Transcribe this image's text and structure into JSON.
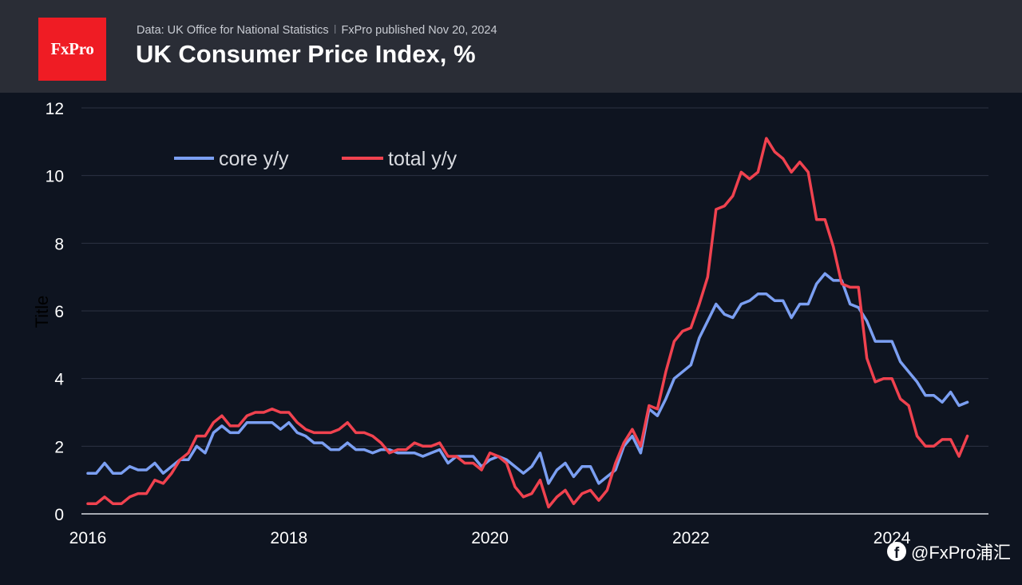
{
  "header": {
    "logo_text": "FxPro",
    "source": "Data: UK Office for National Statistics",
    "separator": "ǀ",
    "published": "FxPro published Nov 20, 2024",
    "title": "UK Consumer Price Index, %"
  },
  "watermark": {
    "icon": "facebook-icon",
    "text": "@FxPro浦汇"
  },
  "colors": {
    "background": "#0e1420",
    "header": "#2a2d36",
    "logo": "#ef1c24",
    "core": "#7b9ff2",
    "total": "#f0424f",
    "grid": "#2c3242"
  },
  "chart_data": {
    "type": "line",
    "title": "UK Consumer Price Index, %",
    "xlabel": "",
    "ylabel": "Title",
    "ylim": [
      0,
      12
    ],
    "xlim": [
      2016.0,
      2024.833
    ],
    "yticks": [
      "0",
      "2",
      "4",
      "6",
      "8",
      "10",
      "12"
    ],
    "xticks": [
      "2016",
      "2018",
      "2020",
      "2022",
      "2024"
    ],
    "grid": true,
    "legend_position": "top-left",
    "x_start": 2016.0,
    "x_step_months": 1,
    "series": [
      {
        "name": "core y/y",
        "color": "#7b9ff2",
        "values": [
          1.2,
          1.2,
          1.5,
          1.2,
          1.2,
          1.4,
          1.3,
          1.3,
          1.5,
          1.2,
          1.4,
          1.6,
          1.6,
          2.0,
          1.8,
          2.4,
          2.6,
          2.4,
          2.4,
          2.7,
          2.7,
          2.7,
          2.7,
          2.5,
          2.7,
          2.4,
          2.3,
          2.1,
          2.1,
          1.9,
          1.9,
          2.1,
          1.9,
          1.9,
          1.8,
          1.9,
          1.9,
          1.8,
          1.8,
          1.8,
          1.7,
          1.8,
          1.9,
          1.5,
          1.7,
          1.7,
          1.7,
          1.4,
          1.6,
          1.7,
          1.6,
          1.4,
          1.2,
          1.4,
          1.8,
          0.9,
          1.3,
          1.5,
          1.1,
          1.4,
          1.4,
          0.9,
          1.1,
          1.3,
          2.0,
          2.3,
          1.8,
          3.1,
          2.9,
          3.4,
          4.0,
          4.2,
          4.4,
          5.2,
          5.7,
          6.2,
          5.9,
          5.8,
          6.2,
          6.3,
          6.5,
          6.5,
          6.3,
          6.3,
          5.8,
          6.2,
          6.2,
          6.8,
          7.1,
          6.9,
          6.9,
          6.2,
          6.1,
          5.7,
          5.1,
          5.1,
          5.1,
          4.5,
          4.2,
          3.9,
          3.5,
          3.5,
          3.3,
          3.6,
          3.2,
          3.3
        ]
      },
      {
        "name": "total y/y",
        "color": "#f0424f",
        "values": [
          0.3,
          0.3,
          0.5,
          0.3,
          0.3,
          0.5,
          0.6,
          0.6,
          1.0,
          0.9,
          1.2,
          1.6,
          1.8,
          2.3,
          2.3,
          2.7,
          2.9,
          2.6,
          2.6,
          2.9,
          3.0,
          3.0,
          3.1,
          3.0,
          3.0,
          2.7,
          2.5,
          2.4,
          2.4,
          2.4,
          2.5,
          2.7,
          2.4,
          2.4,
          2.3,
          2.1,
          1.8,
          1.9,
          1.9,
          2.1,
          2.0,
          2.0,
          2.1,
          1.7,
          1.7,
          1.5,
          1.5,
          1.3,
          1.8,
          1.7,
          1.5,
          0.8,
          0.5,
          0.6,
          1.0,
          0.2,
          0.5,
          0.7,
          0.3,
          0.6,
          0.7,
          0.4,
          0.7,
          1.5,
          2.1,
          2.5,
          2.0,
          3.2,
          3.1,
          4.2,
          5.1,
          5.4,
          5.5,
          6.2,
          7.0,
          9.0,
          9.1,
          9.4,
          10.1,
          9.9,
          10.1,
          11.1,
          10.7,
          10.5,
          10.1,
          10.4,
          10.1,
          8.7,
          8.7,
          7.9,
          6.8,
          6.7,
          6.7,
          4.6,
          3.9,
          4.0,
          4.0,
          3.4,
          3.2,
          2.3,
          2.0,
          2.0,
          2.2,
          2.2,
          1.7,
          2.3
        ]
      }
    ]
  }
}
